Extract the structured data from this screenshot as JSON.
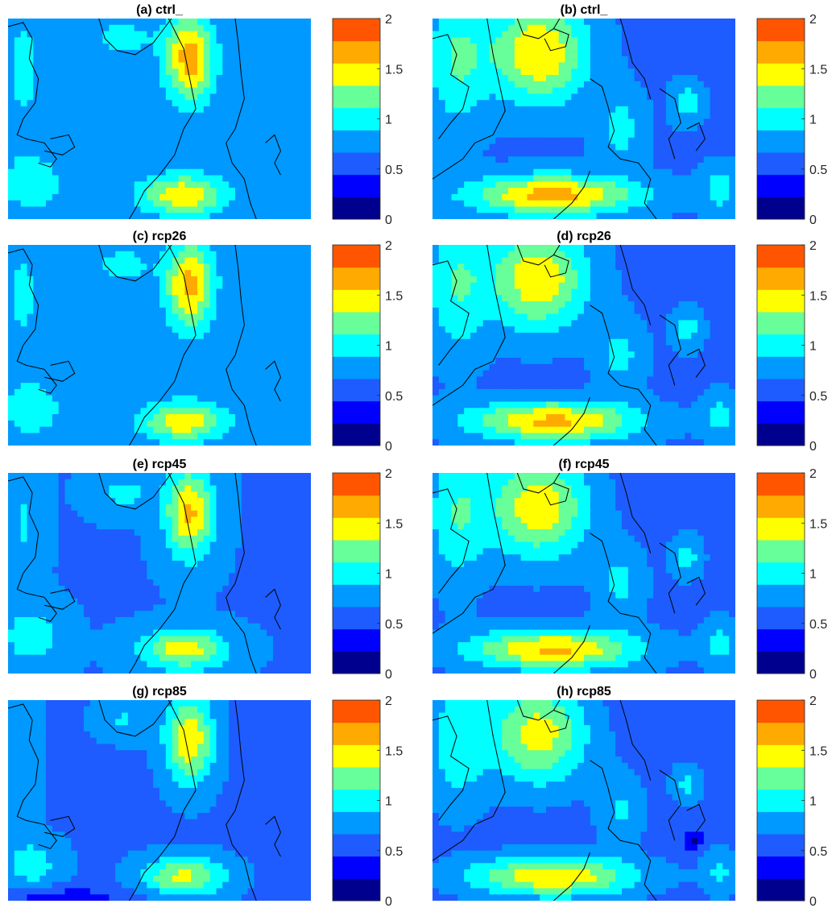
{
  "chart_data": {
    "type": "heatmap",
    "levels": [
      0,
      0.25,
      0.5,
      0.75,
      1,
      1.25,
      1.5,
      1.75,
      2
    ],
    "colorbar": {
      "ticks": [
        0,
        0.5,
        1,
        1.5,
        2
      ],
      "tick_labels": [
        "0",
        "0.5",
        "1",
        "1.5",
        "2"
      ],
      "colors": [
        "#00008f",
        "#0000ff",
        "#1e5cff",
        "#0099ff",
        "#00ffff",
        "#66ff99",
        "#ffff00",
        "#ffaa00",
        "#ff5500"
      ]
    },
    "panels": [
      {
        "id": "a",
        "title": "(a) ctrl_",
        "field": "left",
        "scale": 1.0,
        "extra_low": 0
      },
      {
        "id": "b",
        "title": "(b) ctrl_",
        "field": "right",
        "scale": 1.0,
        "extra_low": 0
      },
      {
        "id": "c",
        "title": "(c) rcp26",
        "field": "left",
        "scale": 0.98,
        "extra_low": 0
      },
      {
        "id": "d",
        "title": "(d) rcp26",
        "field": "right",
        "scale": 0.98,
        "extra_low": 0
      },
      {
        "id": "e",
        "title": "(e) rcp45",
        "field": "left",
        "scale": 0.95,
        "extra_low": 0
      },
      {
        "id": "f",
        "title": "(f) rcp45",
        "field": "right",
        "scale": 0.97,
        "extra_low": 0
      },
      {
        "id": "g",
        "title": "(g) rcp85",
        "field": "left",
        "scale": 0.9,
        "extra_low": 1
      },
      {
        "id": "h",
        "title": "(h) rcp85",
        "field": "right",
        "scale": 0.93,
        "extra_low": 1
      }
    ]
  }
}
